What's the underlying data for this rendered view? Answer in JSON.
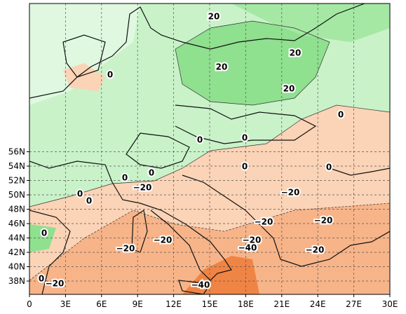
{
  "map": {
    "x_axis_labels": [
      "0",
      "3E",
      "6E",
      "9E",
      "12E",
      "15E",
      "18E",
      "21E",
      "24E",
      "27E",
      "30E"
    ],
    "y_axis_labels": [
      "38N",
      "40N",
      "42N",
      "44N",
      "46N",
      "48N",
      "50N",
      "52N",
      "54N",
      "56N"
    ],
    "contour_labels": [
      "20",
      "20",
      "20",
      "20",
      "0",
      "0",
      "0",
      "0",
      "0",
      "0",
      "0",
      "0",
      "0",
      "0",
      "−20",
      "−20",
      "−20",
      "−20",
      "0",
      "−20",
      "−20",
      "−20",
      "−40",
      "−20",
      "0",
      "−20",
      "−40"
    ]
  }
}
